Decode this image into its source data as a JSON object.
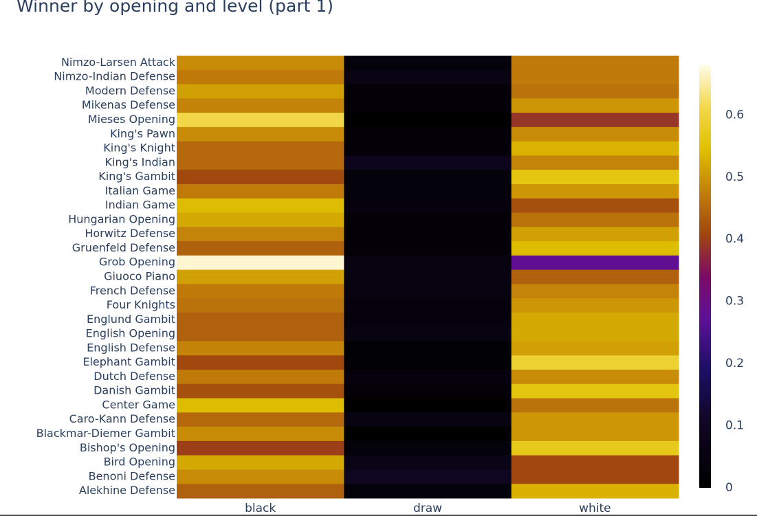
{
  "chart_data": {
    "type": "heatmap",
    "title": "Winner by opening and level (part 1)",
    "x": [
      "black",
      "draw",
      "white"
    ],
    "y": [
      "Nimzo-Larsen Attack",
      "Nimzo-Indian Defense",
      "Modern Defense",
      "Mikenas Defense",
      "Mieses Opening",
      "King's Pawn",
      "King's Knight",
      "King's Indian",
      "King's Gambit",
      "Italian Game",
      "Indian Game",
      "Hungarian Opening",
      "Horwitz Defense",
      "Gruenfeld Defense",
      "Grob Opening",
      "Giuoco Piano",
      "French Defense",
      "Four Knights",
      "Englund Gambit",
      "English Opening",
      "English Defense",
      "Elephant Gambit",
      "Dutch Defense",
      "Danish Gambit",
      "Center Game",
      "Caro-Kann Defense",
      "Blackmar-Diemer Gambit",
      "Bishop's Opening",
      "Bird Opening",
      "Benoni Defense",
      "Alekhine Defense"
    ],
    "z": [
      [
        0.49,
        0.03,
        0.47
      ],
      [
        0.47,
        0.06,
        0.47
      ],
      [
        0.51,
        0.02,
        0.46
      ],
      [
        0.48,
        0.02,
        0.5
      ],
      [
        0.61,
        0.0,
        0.39
      ],
      [
        0.49,
        0.02,
        0.49
      ],
      [
        0.45,
        0.02,
        0.53
      ],
      [
        0.45,
        0.08,
        0.48
      ],
      [
        0.41,
        0.03,
        0.56
      ],
      [
        0.47,
        0.03,
        0.5
      ],
      [
        0.54,
        0.04,
        0.42
      ],
      [
        0.52,
        0.02,
        0.46
      ],
      [
        0.48,
        0.02,
        0.51
      ],
      [
        0.44,
        0.02,
        0.54
      ],
      [
        0.67,
        0.05,
        0.28
      ],
      [
        0.51,
        0.05,
        0.44
      ],
      [
        0.47,
        0.05,
        0.48
      ],
      [
        0.46,
        0.04,
        0.5
      ],
      [
        0.44,
        0.04,
        0.52
      ],
      [
        0.44,
        0.05,
        0.52
      ],
      [
        0.48,
        0.01,
        0.51
      ],
      [
        0.41,
        0.01,
        0.59
      ],
      [
        0.47,
        0.04,
        0.49
      ],
      [
        0.42,
        0.02,
        0.56
      ],
      [
        0.54,
        0.0,
        0.46
      ],
      [
        0.45,
        0.05,
        0.5
      ],
      [
        0.49,
        0.0,
        0.5
      ],
      [
        0.4,
        0.03,
        0.57
      ],
      [
        0.52,
        0.07,
        0.41
      ],
      [
        0.49,
        0.1,
        0.41
      ],
      [
        0.44,
        0.03,
        0.53
      ]
    ],
    "zmin": 0,
    "zmax": 0.68,
    "colorbar_ticks": [
      0,
      0.1,
      0.2,
      0.3,
      0.4,
      0.5,
      0.6
    ],
    "colorscale_name": "gnuplot",
    "colorscale": [
      [
        0.0,
        "#000000"
      ],
      [
        0.15,
        "#0f0622"
      ],
      [
        0.28,
        "#1c0f66"
      ],
      [
        0.4,
        "#5d1098"
      ],
      [
        0.5,
        "#7c0a66"
      ],
      [
        0.6,
        "#a0460f"
      ],
      [
        0.7,
        "#c27f0a"
      ],
      [
        0.8,
        "#e0c000"
      ],
      [
        0.9,
        "#f3d84a"
      ],
      [
        1.0,
        "#fffbe8"
      ]
    ]
  }
}
